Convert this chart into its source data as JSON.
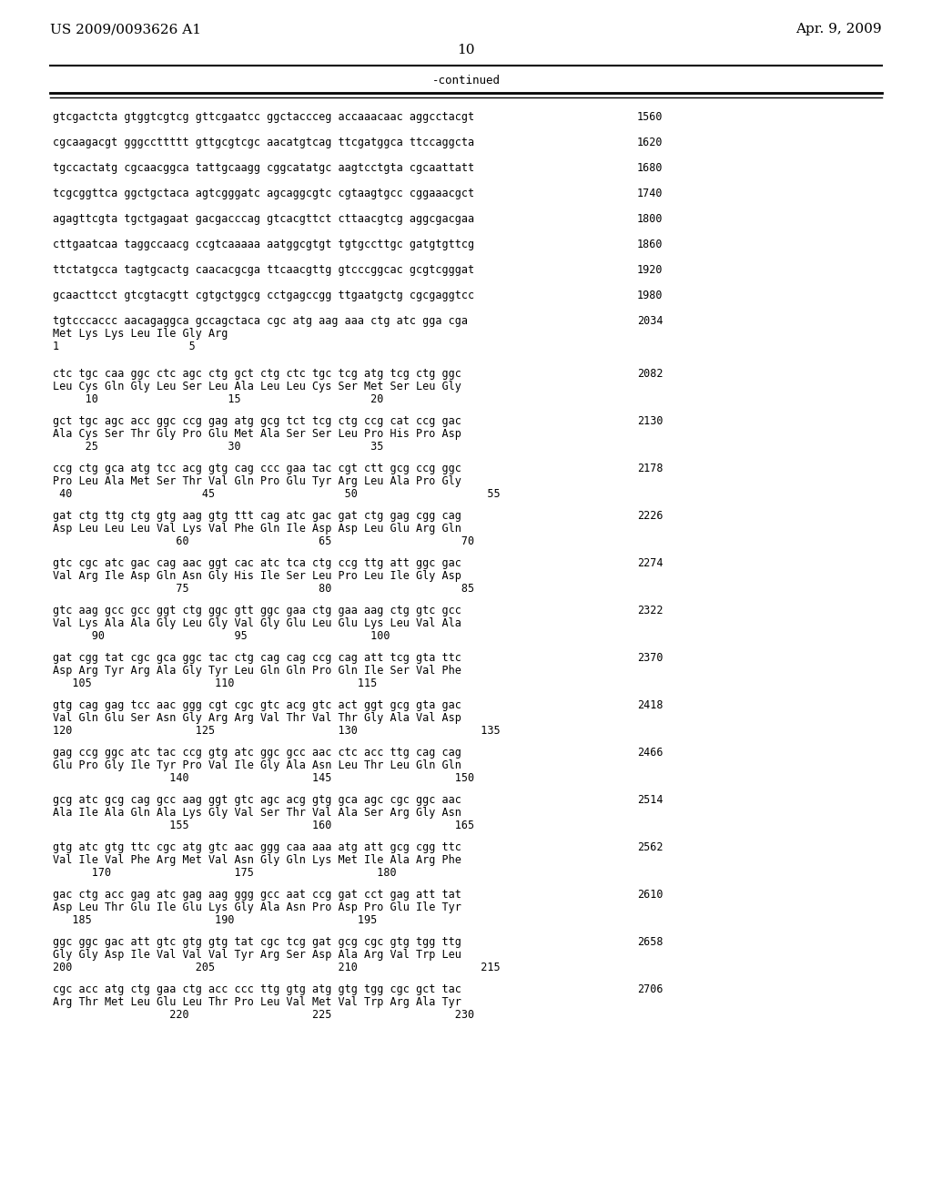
{
  "header_left": "US 2009/0093626 A1",
  "header_right": "Apr. 9, 2009",
  "page_number": "10",
  "continued_label": "-continued",
  "background_color": "#ffffff",
  "text_color": "#000000",
  "lines": [
    {
      "type": "seq",
      "dna": "gtcgactcta gtggtcgtcg gttcgaatcc ggctaccceg accaaacaac aggcctacgt",
      "num": "1560"
    },
    {
      "type": "seq",
      "dna": "cgcaagacgt gggccttttt gttgcgtcgc aacatgtcag ttcgatggca ttccaggcta",
      "num": "1620"
    },
    {
      "type": "seq",
      "dna": "tgccactatg cgcaacggca tattgcaagg cggcatatgc aagtcctgta cgcaattatt",
      "num": "1680"
    },
    {
      "type": "seq",
      "dna": "tcgcggttca ggctgctaca agtcgggatc agcaggcgtc cgtaagtgcc cggaaacgct",
      "num": "1740"
    },
    {
      "type": "seq",
      "dna": "agagttcgta tgctgagaat gacgacccag gtcacgttct cttaacgtcg aggcgacgaa",
      "num": "1800"
    },
    {
      "type": "seq",
      "dna": "cttgaatcaa taggccaacg ccgtcaaaaa aatggcgtgt tgtgccttgc gatgtgttcg",
      "num": "1860"
    },
    {
      "type": "seq",
      "dna": "ttctatgcca tagtgcactg caacacgcga ttcaacgttg gtcccggcac gcgtcgggat",
      "num": "1920"
    },
    {
      "type": "seq",
      "dna": "gcaacttcct gtcgtacgtt cgtgctggcg cctgagccgg ttgaatgctg cgcgaggtcc",
      "num": "1980"
    },
    {
      "type": "seq_aa_start",
      "dna": "tgtcccaccc aacagaggca gccagctaca cgc atg aag aaa ctg atc gga cga",
      "num": "2034",
      "aa": "Met Lys Lys Leu Ile Gly Arg",
      "nums": "1                    5"
    },
    {
      "type": "seq_aa",
      "dna": "ctc tgc caa ggc ctc agc ctg gct ctg ctc tgc tcg atg tcg ctg ggc",
      "num": "2082",
      "aa": "Leu Cys Gln Gly Leu Ser Leu Ala Leu Leu Cys Ser Met Ser Leu Gly",
      "nums": "     10                    15                    20"
    },
    {
      "type": "seq_aa",
      "dna": "gct tgc agc acc ggc ccg gag atg gcg tct tcg ctg ccg cat ccg gac",
      "num": "2130",
      "aa": "Ala Cys Ser Thr Gly Pro Glu Met Ala Ser Ser Leu Pro His Pro Asp",
      "nums": "     25                    30                    35"
    },
    {
      "type": "seq_aa",
      "dna": "ccg ctg gca atg tcc acg gtg cag ccc gaa tac cgt ctt gcg ccg ggc",
      "num": "2178",
      "aa": "Pro Leu Ala Met Ser Thr Val Gln Pro Glu Tyr Arg Leu Ala Pro Gly",
      "nums": " 40                    45                    50                    55"
    },
    {
      "type": "seq_aa",
      "dna": "gat ctg ttg ctg gtg aag gtg ttt cag atc gac gat ctg gag cgg cag",
      "num": "2226",
      "aa": "Asp Leu Leu Leu Val Lys Val Phe Gln Ile Asp Asp Leu Glu Arg Gln",
      "nums": "                   60                    65                    70"
    },
    {
      "type": "seq_aa",
      "dna": "gtc cgc atc gac cag aac ggt cac atc tca ctg ccg ttg att ggc gac",
      "num": "2274",
      "aa": "Val Arg Ile Asp Gln Asn Gly His Ile Ser Leu Pro Leu Ile Gly Asp",
      "nums": "                   75                    80                    85"
    },
    {
      "type": "seq_aa",
      "dna": "gtc aag gcc gcc ggt ctg ggc gtt ggc gaa ctg gaa aag ctg gtc gcc",
      "num": "2322",
      "aa": "Val Lys Ala Ala Gly Leu Gly Val Gly Glu Leu Glu Lys Leu Val Ala",
      "nums": "      90                    95                   100"
    },
    {
      "type": "seq_aa",
      "dna": "gat cgg tat cgc gca ggc tac ctg cag cag ccg cag att tcg gta ttc",
      "num": "2370",
      "aa": "Asp Arg Tyr Arg Ala Gly Tyr Leu Gln Gln Pro Gln Ile Ser Val Phe",
      "nums": "   105                   110                   115"
    },
    {
      "type": "seq_aa",
      "dna": "gtg cag gag tcc aac ggg cgt cgc gtc acg gtc act ggt gcg gta gac",
      "num": "2418",
      "aa": "Val Gln Glu Ser Asn Gly Arg Arg Val Thr Val Thr Gly Ala Val Asp",
      "nums": "120                   125                   130                   135"
    },
    {
      "type": "seq_aa",
      "dna": "gag ccg ggc atc tac ccg gtg atc ggc gcc aac ctc acc ttg cag cag",
      "num": "2466",
      "aa": "Glu Pro Gly Ile Tyr Pro Val Ile Gly Ala Asn Leu Thr Leu Gln Gln",
      "nums": "                  140                   145                   150"
    },
    {
      "type": "seq_aa",
      "dna": "gcg atc gcg cag gcc aag ggt gtc agc acg gtg gca agc cgc ggc aac",
      "num": "2514",
      "aa": "Ala Ile Ala Gln Ala Lys Gly Val Ser Thr Val Ala Ser Arg Gly Asn",
      "nums": "                  155                   160                   165"
    },
    {
      "type": "seq_aa",
      "dna": "gtg atc gtg ttc cgc atg gtc aac ggg caa aaa atg att gcg cgg ttc",
      "num": "2562",
      "aa": "Val Ile Val Phe Arg Met Val Asn Gly Gln Lys Met Ile Ala Arg Phe",
      "nums": "      170                   175                   180"
    },
    {
      "type": "seq_aa",
      "dna": "gac ctg acc gag atc gag aag ggg gcc aat ccg gat cct gag att tat",
      "num": "2610",
      "aa": "Asp Leu Thr Glu Ile Glu Lys Gly Ala Asn Pro Asp Pro Glu Ile Tyr",
      "nums": "   185                   190                   195"
    },
    {
      "type": "seq_aa",
      "dna": "ggc ggc gac att gtc gtg gtg tat cgc tcg gat gcg cgc gtg tgg ttg",
      "num": "2658",
      "aa": "Gly Gly Asp Ile Val Val Val Tyr Arg Ser Asp Ala Arg Val Trp Leu",
      "nums": "200                   205                   210                   215"
    },
    {
      "type": "seq_aa",
      "dna": "cgc acc atg ctg gaa ctg acc ccc ttg gtg atg gtg tgg cgc gct tac",
      "num": "2706",
      "aa": "Arg Thr Met Leu Glu Leu Thr Pro Leu Val Met Val Trp Arg Ala Tyr",
      "nums": "                  220                   225                   230"
    }
  ]
}
